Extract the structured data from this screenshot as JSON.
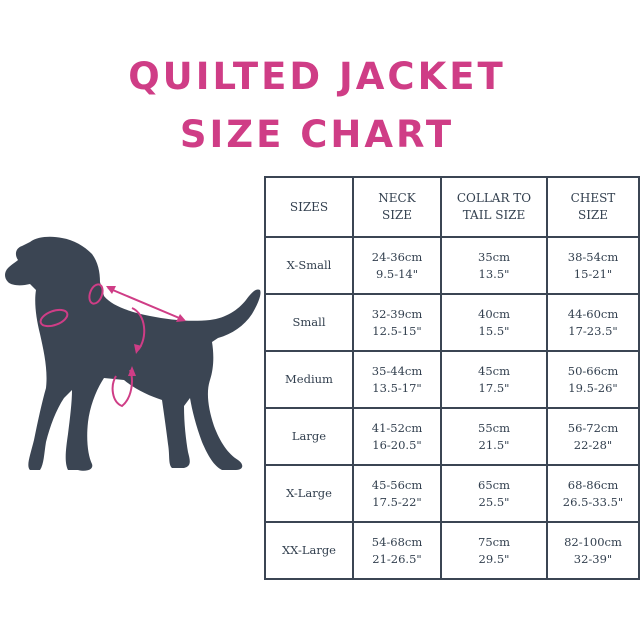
{
  "title": {
    "line1": "QUILTED JACKET",
    "line2": "SIZE CHART"
  },
  "colors": {
    "title": "#cf3d86",
    "dog": "#3b4553",
    "arrows": "#cf3d86",
    "grid": "#3b4553"
  },
  "headers": [
    {
      "line1": "SIZES",
      "line2": ""
    },
    {
      "line1": "NECK",
      "line2": "SIZE"
    },
    {
      "line1": "COLLAR TO",
      "line2": "TAIL SIZE"
    },
    {
      "line1": "CHEST",
      "line2": "SIZE"
    }
  ],
  "rows": [
    {
      "size": "X-Small",
      "neck_cm": "24-36cm",
      "neck_in": "9.5-14\"",
      "length_cm": "35cm",
      "length_in": "13.5\"",
      "chest_cm": "38-54cm",
      "chest_in": "15-21\""
    },
    {
      "size": "Small",
      "neck_cm": "32-39cm",
      "neck_in": "12.5-15\"",
      "length_cm": "40cm",
      "length_in": "15.5\"",
      "chest_cm": "44-60cm",
      "chest_in": "17-23.5\""
    },
    {
      "size": "Medium",
      "neck_cm": "35-44cm",
      "neck_in": "13.5-17\"",
      "length_cm": "45cm",
      "length_in": "17.5\"",
      "chest_cm": "50-66cm",
      "chest_in": "19.5-26\""
    },
    {
      "size": "Large",
      "neck_cm": "41-52cm",
      "neck_in": "16-20.5\"",
      "length_cm": "55cm",
      "length_in": "21.5\"",
      "chest_cm": "56-72cm",
      "chest_in": "22-28\""
    },
    {
      "size": "X-Large",
      "neck_cm": "45-56cm",
      "neck_in": "17.5-22\"",
      "length_cm": "65cm",
      "length_in": "25.5\"",
      "chest_cm": "68-86cm",
      "chest_in": "26.5-33.5\""
    },
    {
      "size": "XX-Large",
      "neck_cm": "54-68cm",
      "neck_in": "21-26.5\"",
      "length_cm": "75cm",
      "length_in": "29.5\"",
      "chest_cm": "82-100cm",
      "chest_in": "32-39\""
    }
  ]
}
